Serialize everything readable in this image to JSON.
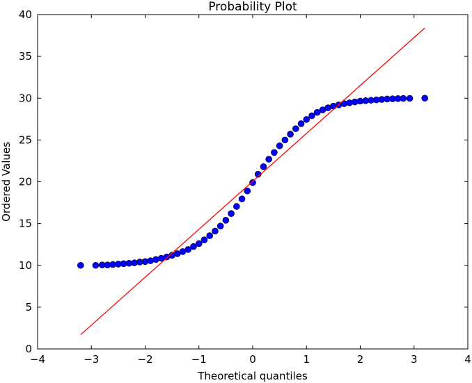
{
  "chart_data": {
    "type": "scatter",
    "title": "Probability Plot",
    "xlabel": "Theoretical quantiles",
    "ylabel": "Ordered Values",
    "xlim": [
      -4,
      4
    ],
    "ylim": [
      0,
      40
    ],
    "xticks": [
      -4,
      -3,
      -2,
      -1,
      0,
      1,
      2,
      3,
      4
    ],
    "yticks": [
      0,
      5,
      10,
      15,
      20,
      25,
      30,
      35,
      40
    ],
    "xtick_labels": [
      "−4",
      "−3",
      "−2",
      "−1",
      "0",
      "1",
      "2",
      "3",
      "4"
    ],
    "ytick_labels": [
      "0",
      "5",
      "10",
      "15",
      "20",
      "25",
      "30",
      "35",
      "40"
    ],
    "grid": false,
    "series": [
      {
        "kind": "points",
        "color": "#0000ff",
        "edge_color": "#000000",
        "points": [
          [
            -3.2,
            10.0
          ],
          [
            -2.92,
            10.0
          ],
          [
            -2.8,
            10.05
          ],
          [
            -2.7,
            10.05
          ],
          [
            -2.6,
            10.1
          ],
          [
            -2.5,
            10.15
          ],
          [
            -2.4,
            10.2
          ],
          [
            -2.3,
            10.25
          ],
          [
            -2.2,
            10.3
          ],
          [
            -2.1,
            10.4
          ],
          [
            -2.0,
            10.45
          ],
          [
            -1.9,
            10.55
          ],
          [
            -1.8,
            10.7
          ],
          [
            -1.7,
            10.85
          ],
          [
            -1.6,
            11.0
          ],
          [
            -1.5,
            11.2
          ],
          [
            -1.4,
            11.4
          ],
          [
            -1.3,
            11.65
          ],
          [
            -1.2,
            11.9
          ],
          [
            -1.1,
            12.25
          ],
          [
            -1.0,
            12.6
          ],
          [
            -0.9,
            13.05
          ],
          [
            -0.8,
            13.55
          ],
          [
            -0.7,
            14.1
          ],
          [
            -0.6,
            14.7
          ],
          [
            -0.5,
            15.4
          ],
          [
            -0.4,
            16.2
          ],
          [
            -0.3,
            17.05
          ],
          [
            -0.2,
            17.95
          ],
          [
            -0.1,
            18.9
          ],
          [
            0.0,
            19.9
          ],
          [
            0.1,
            20.9
          ],
          [
            0.2,
            21.8
          ],
          [
            0.3,
            22.7
          ],
          [
            0.4,
            23.5
          ],
          [
            0.5,
            24.3
          ],
          [
            0.6,
            25.0
          ],
          [
            0.7,
            25.7
          ],
          [
            0.8,
            26.35
          ],
          [
            0.9,
            26.95
          ],
          [
            1.0,
            27.45
          ],
          [
            1.1,
            27.9
          ],
          [
            1.2,
            28.3
          ],
          [
            1.3,
            28.6
          ],
          [
            1.4,
            28.85
          ],
          [
            1.5,
            29.05
          ],
          [
            1.6,
            29.2
          ],
          [
            1.7,
            29.35
          ],
          [
            1.8,
            29.45
          ],
          [
            1.9,
            29.55
          ],
          [
            2.0,
            29.65
          ],
          [
            2.1,
            29.7
          ],
          [
            2.2,
            29.75
          ],
          [
            2.3,
            29.8
          ],
          [
            2.4,
            29.85
          ],
          [
            2.5,
            29.9
          ],
          [
            2.6,
            29.92
          ],
          [
            2.7,
            29.95
          ],
          [
            2.8,
            29.97
          ],
          [
            2.92,
            29.98
          ],
          [
            3.2,
            30.0
          ]
        ]
      },
      {
        "kind": "fit_line",
        "color": "#ff0000",
        "x": [
          -3.2,
          3.2
        ],
        "y": [
          1.7,
          38.4
        ]
      }
    ]
  }
}
